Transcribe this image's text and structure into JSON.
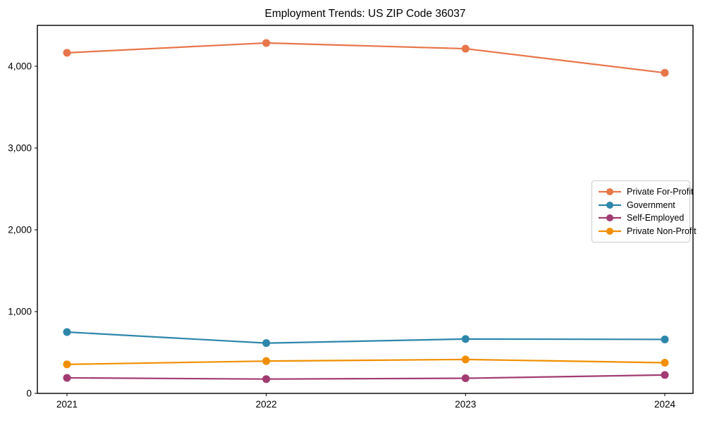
{
  "chart_data": {
    "type": "line",
    "title": "Employment Trends: US ZIP Code 36037",
    "xlabel": "",
    "ylabel": "",
    "x_categories": [
      "2021",
      "2022",
      "2023",
      "2024"
    ],
    "series": [
      {
        "name": "Private For-Profit",
        "color": "#E8764B",
        "values": [
          4165,
          4285,
          4215,
          3920
        ]
      },
      {
        "name": "Government",
        "color": "#2E86AB",
        "values": [
          750,
          615,
          665,
          660
        ]
      },
      {
        "name": "Self-Employed",
        "color": "#A23B72",
        "values": [
          190,
          175,
          185,
          225
        ]
      },
      {
        "name": "Private Non-Profit",
        "color": "#F18F01",
        "values": [
          355,
          395,
          415,
          375
        ]
      }
    ],
    "ylim": [
      0,
      4500
    ],
    "y_ticks": [
      0,
      1000,
      2000,
      3000,
      4000
    ],
    "y_tick_labels": [
      "0",
      "1,000",
      "2,000",
      "3,000",
      "4,000"
    ],
    "grid": false,
    "legend_position": "center-right",
    "marker": "circle",
    "frame_color": "#000000"
  }
}
